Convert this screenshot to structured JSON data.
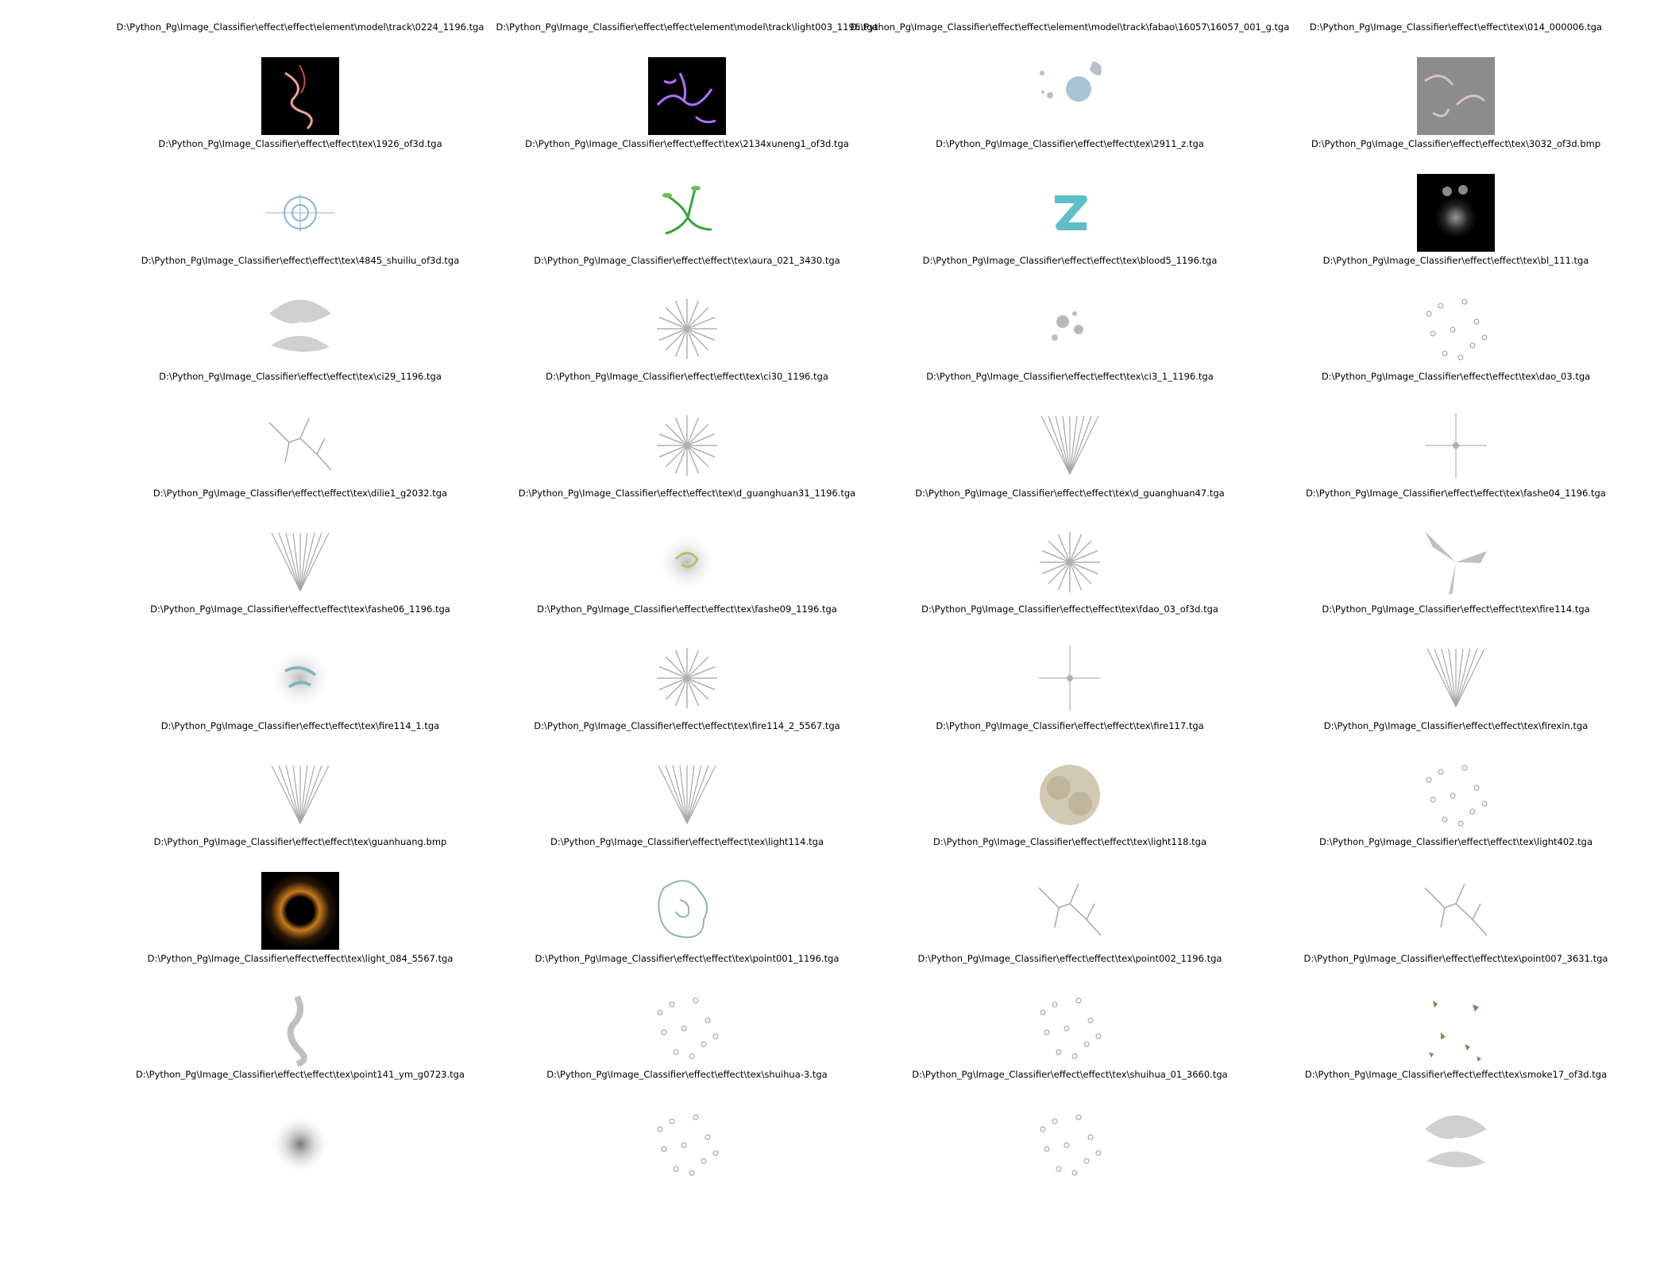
{
  "window": {
    "title": ""
  },
  "captions": [
    [
      "D:\\Python_Pg\\Image_Classifier\\effect\\effect\\element\\model\\track\\0224_1196.tga",
      "D:\\Python_Pg\\Image_Classifier\\effect\\effect\\element\\model\\track\\light003_1196.tga",
      "D:\\Python_Pg\\Image_Classifier\\effect\\effect\\element\\model\\track\\fabao\\16057\\16057_001_g.tga",
      "D:\\Python_Pg\\Image_Classifier\\effect\\effect\\tex\\014_000006.tga"
    ],
    [
      "D:\\Python_Pg\\Image_Classifier\\effect\\effect\\tex\\1926_of3d.tga",
      "D:\\Python_Pg\\Image_Classifier\\effect\\effect\\tex\\2134xuneng1_of3d.tga",
      "D:\\Python_Pg\\Image_Classifier\\effect\\effect\\tex\\2911_z.tga",
      "D:\\Python_Pg\\Image_Classifier\\effect\\effect\\tex\\3032_of3d.bmp"
    ],
    [
      "D:\\Python_Pg\\Image_Classifier\\effect\\effect\\tex\\4845_shuiliu_of3d.tga",
      "D:\\Python_Pg\\Image_Classifier\\effect\\effect\\tex\\aura_021_3430.tga",
      "D:\\Python_Pg\\Image_Classifier\\effect\\effect\\tex\\blood5_1196.tga",
      "D:\\Python_Pg\\Image_Classifier\\effect\\effect\\tex\\bl_111.tga"
    ],
    [
      "D:\\Python_Pg\\Image_Classifier\\effect\\effect\\tex\\ci29_1196.tga",
      "D:\\Python_Pg\\Image_Classifier\\effect\\effect\\tex\\ci30_1196.tga",
      "D:\\Python_Pg\\Image_Classifier\\effect\\effect\\tex\\ci3_1_1196.tga",
      "D:\\Python_Pg\\Image_Classifier\\effect\\effect\\tex\\dao_03.tga"
    ],
    [
      "D:\\Python_Pg\\Image_Classifier\\effect\\effect\\tex\\dilie1_g2032.tga",
      "D:\\Python_Pg\\Image_Classifier\\effect\\effect\\tex\\d_guanghuan31_1196.tga",
      "D:\\Python_Pg\\Image_Classifier\\effect\\effect\\tex\\d_guanghuan47.tga",
      "D:\\Python_Pg\\Image_Classifier\\effect\\effect\\tex\\fashe04_1196.tga"
    ],
    [
      "D:\\Python_Pg\\Image_Classifier\\effect\\effect\\tex\\fashe06_1196.tga",
      "D:\\Python_Pg\\Image_Classifier\\effect\\effect\\tex\\fashe09_1196.tga",
      "D:\\Python_Pg\\Image_Classifier\\effect\\effect\\tex\\fdao_03_of3d.tga",
      "D:\\Python_Pg\\Image_Classifier\\effect\\effect\\tex\\fire114.tga"
    ],
    [
      "D:\\Python_Pg\\Image_Classifier\\effect\\effect\\tex\\fire114_1.tga",
      "D:\\Python_Pg\\Image_Classifier\\effect\\effect\\tex\\fire114_2_5567.tga",
      "D:\\Python_Pg\\Image_Classifier\\effect\\effect\\tex\\fire117.tga",
      "D:\\Python_Pg\\Image_Classifier\\effect\\effect\\tex\\firexin.tga"
    ],
    [
      "D:\\Python_Pg\\Image_Classifier\\effect\\effect\\tex\\guanhuang.bmp",
      "D:\\Python_Pg\\Image_Classifier\\effect\\effect\\tex\\light114.tga",
      "D:\\Python_Pg\\Image_Classifier\\effect\\effect\\tex\\light118.tga",
      "D:\\Python_Pg\\Image_Classifier\\effect\\effect\\tex\\light402.tga"
    ],
    [
      "D:\\Python_Pg\\Image_Classifier\\effect\\effect\\tex\\light_084_5567.tga",
      "D:\\Python_Pg\\Image_Classifier\\effect\\effect\\tex\\point001_1196.tga",
      "D:\\Python_Pg\\Image_Classifier\\effect\\effect\\tex\\point002_1196.tga",
      "D:\\Python_Pg\\Image_Classifier\\effect\\effect\\tex\\point007_3631.tga"
    ],
    [
      "D:\\Python_Pg\\Image_Classifier\\effect\\effect\\tex\\point141_ym_g0723.tga",
      "D:\\Python_Pg\\Image_Classifier\\effect\\effect\\tex\\shuihua-3.tga",
      "D:\\Python_Pg\\Image_Classifier\\effect\\effect\\tex\\shuihua_01_3660.tga",
      "D:\\Python_Pg\\Image_Classifier\\effect\\effect\\tex\\smoke17_of3d.tga"
    ]
  ],
  "thumbnails": [
    [
      "red-lightning-texture",
      "purple-lightning-texture",
      "blue-splash-texture",
      "gray-noise-texture"
    ],
    [
      "blue-mandala-texture",
      "green-vine-texture",
      "cyan-z-texture",
      "dark-glow-texture"
    ],
    [
      "gray-smoke-texture",
      "gray-burst-texture",
      "gray-splatter-texture",
      "gray-dots-texture"
    ],
    [
      "gray-crack-texture",
      "gray-rays-texture",
      "gray-fan-texture",
      "gray-cross-texture"
    ],
    [
      "gray-branch-texture",
      "green-swirl-texture",
      "white-starburst-texture",
      "gray-blades-texture"
    ],
    [
      "teal-flare-texture",
      "gray-flare-texture",
      "gray-arrow-texture",
      "gray-sparks-texture"
    ],
    [
      "gray-sparks-texture",
      "gray-sparks-texture",
      "beige-cloud-texture",
      "gray-dots-texture"
    ],
    [
      "orange-ring-texture",
      "green-ring-outline-texture",
      "gray-crack-texture",
      "gray-shatter-texture"
    ],
    [
      "gray-wisp-texture",
      "gray-bubbles-texture",
      "gray-bubbles-texture",
      "brown-flakes-texture"
    ],
    [
      "gray-blur-texture",
      "gray-droplets-texture",
      "gray-dots-texture",
      "gray-smoke-texture"
    ]
  ]
}
